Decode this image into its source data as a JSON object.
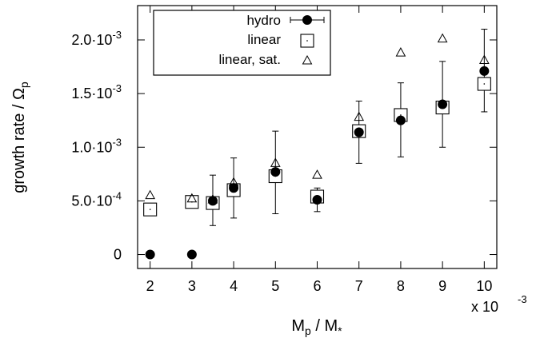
{
  "chart_data": {
    "type": "scatter",
    "title": "",
    "xlabel": "M_p / M_*",
    "xlabel_parts": {
      "base1": "M",
      "sub1": "p",
      "sep": " / ",
      "base2": "M",
      "sub2": "*"
    },
    "x_multiplier": "x 10",
    "x_multiplier_exp": "-3",
    "ylabel": "growth rate / Ω_p",
    "ylabel_parts": {
      "text": "growth rate / Ω",
      "sub": "p"
    },
    "xlim": [
      1.7,
      10.3
    ],
    "ylim": [
      -0.00013,
      0.00232
    ],
    "x_ticks": [
      2,
      3,
      4,
      5,
      6,
      7,
      8,
      9,
      10
    ],
    "x_tick_labels": [
      "2",
      "3",
      "4",
      "5",
      "6",
      "7",
      "8",
      "9",
      "10"
    ],
    "y_ticks": [
      0,
      0.0005,
      0.001,
      0.0015,
      0.002
    ],
    "y_tick_labels": [
      {
        "mantissa": "0",
        "exp": ""
      },
      {
        "mantissa": "5.0·10",
        "exp": "-4"
      },
      {
        "mantissa": "1.0·10",
        "exp": "-3"
      },
      {
        "mantissa": "1.5·10",
        "exp": "-3"
      },
      {
        "mantissa": "2.0·10",
        "exp": "-3"
      }
    ],
    "grid": false,
    "legend_position": "top-left",
    "series": [
      {
        "name": "hydro",
        "marker": "filled-circle",
        "error_bars": true,
        "points": [
          {
            "x": 2,
            "y": 0
          },
          {
            "x": 3,
            "y": 0
          },
          {
            "x": 3.5,
            "y": 0.0005,
            "ylo": 0.00027,
            "yhi": 0.00074
          },
          {
            "x": 4,
            "y": 0.00062,
            "ylo": 0.00034,
            "yhi": 0.0009
          },
          {
            "x": 5,
            "y": 0.00077,
            "ylo": 0.00038,
            "yhi": 0.00115
          },
          {
            "x": 6,
            "y": 0.00051,
            "ylo": 0.0004,
            "yhi": 0.00062
          },
          {
            "x": 7,
            "y": 0.00114,
            "ylo": 0.00085,
            "yhi": 0.00143
          },
          {
            "x": 8,
            "y": 0.00125,
            "ylo": 0.00091,
            "yhi": 0.0016
          },
          {
            "x": 9,
            "y": 0.0014,
            "ylo": 0.001,
            "yhi": 0.0018
          },
          {
            "x": 10,
            "y": 0.00171,
            "ylo": 0.00133,
            "yhi": 0.0021
          }
        ]
      },
      {
        "name": "linear",
        "marker": "open-square",
        "points": [
          {
            "x": 2,
            "y": 0.00042
          },
          {
            "x": 3,
            "y": 0.00049
          },
          {
            "x": 3.5,
            "y": 0.00048
          },
          {
            "x": 4,
            "y": 0.0006
          },
          {
            "x": 5,
            "y": 0.00073
          },
          {
            "x": 6,
            "y": 0.00054
          },
          {
            "x": 7,
            "y": 0.00115
          },
          {
            "x": 8,
            "y": 0.0013
          },
          {
            "x": 9,
            "y": 0.00137
          },
          {
            "x": 10,
            "y": 0.00159
          }
        ]
      },
      {
        "name": "linear, sat.",
        "marker": "open-triangle",
        "points": [
          {
            "x": 2,
            "y": 0.00055
          },
          {
            "x": 3,
            "y": 0.00052
          },
          {
            "x": 3.5,
            "y": 0.00051
          },
          {
            "x": 4,
            "y": 0.00067
          },
          {
            "x": 5,
            "y": 0.00085
          },
          {
            "x": 6,
            "y": 0.00074
          },
          {
            "x": 7,
            "y": 0.00128
          },
          {
            "x": 8,
            "y": 0.00188
          },
          {
            "x": 9,
            "y": 0.00201
          },
          {
            "x": 10,
            "y": 0.00181
          }
        ]
      }
    ]
  }
}
